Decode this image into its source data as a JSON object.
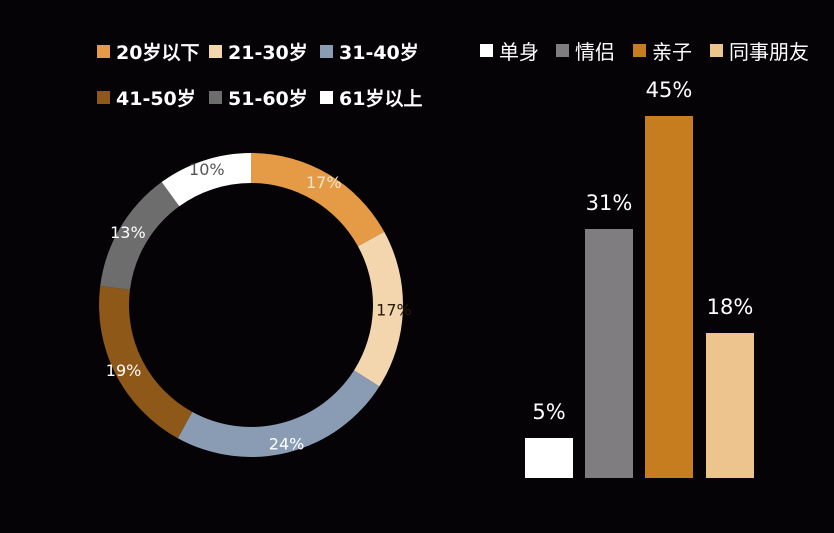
{
  "chart_data": [
    {
      "type": "pie",
      "variant": "donut",
      "title": "",
      "legend_position": "top",
      "categories": [
        "20岁以下",
        "21-30岁",
        "31-40岁",
        "41-50岁",
        "51-60岁",
        "61岁以上"
      ],
      "values": [
        17,
        17,
        24,
        19,
        13,
        10
      ],
      "labels": [
        "17%",
        "17%",
        "24%",
        "19%",
        "13%",
        "10%"
      ],
      "colors": [
        "#E59A45",
        "#F3D6AE",
        "#8A9CB4",
        "#8E5818",
        "#6E6D6E",
        "#FFFFFF"
      ],
      "label_colors": [
        "#F5E6CF",
        "#2A1A0A",
        "#FFFFFF",
        "#FFFFFF",
        "#FFFFFF",
        "#555555"
      ]
    },
    {
      "type": "bar",
      "title": "",
      "legend_position": "top",
      "grid": false,
      "categories": [
        "单身",
        "情侣",
        "亲子",
        "同事朋友"
      ],
      "values": [
        5,
        31,
        45,
        18
      ],
      "labels": [
        "5%",
        "31%",
        "45%",
        "18%"
      ],
      "colors": [
        "#FFFFFF",
        "#807D80",
        "#C57D20",
        "#EEC48E"
      ],
      "xlabel": "",
      "ylabel": "",
      "ylim": [
        0,
        50
      ]
    }
  ],
  "legend_age": [
    {
      "label": "20岁以下",
      "color": "#E59A45"
    },
    {
      "label": "21-30岁",
      "color": "#F3D6AE"
    },
    {
      "label": "31-40岁",
      "color": "#8A9CB4"
    },
    {
      "label": "41-50岁",
      "color": "#8E5818"
    },
    {
      "label": "51-60岁",
      "color": "#6E6D6E"
    },
    {
      "label": "61岁以上",
      "color": "#FFFFFF"
    }
  ],
  "legend_group": [
    {
      "label": "单身",
      "color": "#FFFFFF"
    },
    {
      "label": "情侣",
      "color": "#807D80"
    },
    {
      "label": "亲子",
      "color": "#C57D20"
    },
    {
      "label": "同事朋友",
      "color": "#EEC48E"
    }
  ]
}
